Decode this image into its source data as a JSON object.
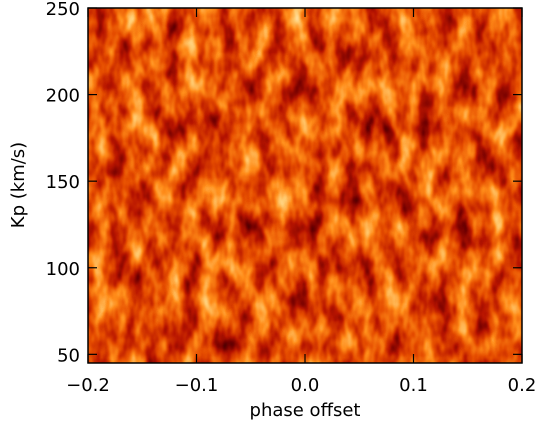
{
  "chart_data": {
    "type": "heatmap",
    "xlabel": "phase offset",
    "ylabel": "Kp (km/s)",
    "xlim": [
      -0.2,
      0.2
    ],
    "xticks": [
      {
        "value": -0.2,
        "label": "−0.2"
      },
      {
        "value": -0.1,
        "label": "−0.1"
      },
      {
        "value": 0,
        "label": "0.0"
      },
      0.1,
      0.2
    ],
    "ylim": [
      45,
      250
    ],
    "yticks": [
      50,
      100,
      150,
      200,
      250
    ]
  }
}
